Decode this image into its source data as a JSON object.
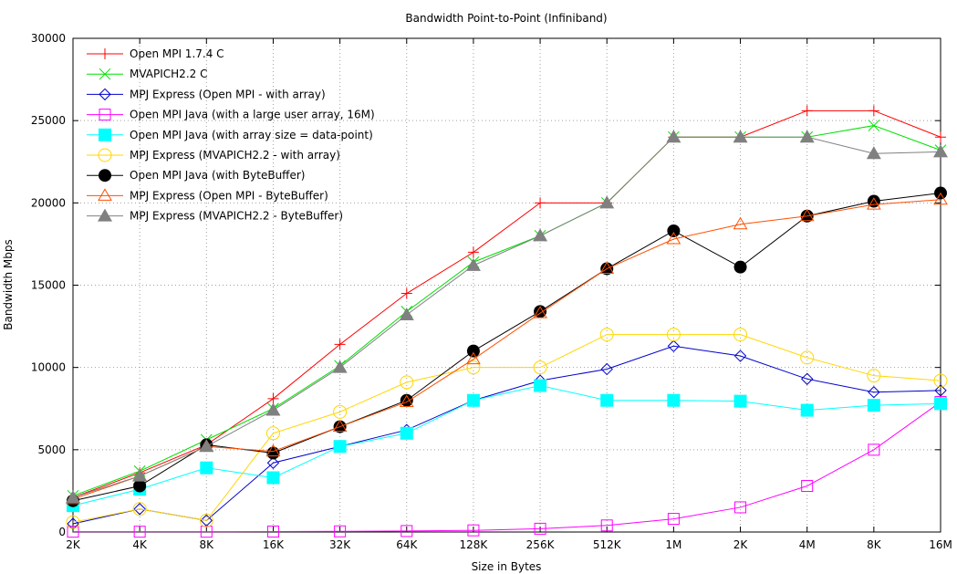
{
  "chart_data": {
    "type": "line",
    "title": "Bandwidth Point-to-Point (Infiniband)",
    "xlabel": "Size in Bytes",
    "ylabel": "Bandwidth Mbps",
    "categories": [
      "2K",
      "4K",
      "8K",
      "16K",
      "32K",
      "64K",
      "128K",
      "256K",
      "512K",
      "1M",
      "2K",
      "4M",
      "8K",
      "16M"
    ],
    "ylim": [
      0,
      30000
    ],
    "yticks": [
      0,
      5000,
      10000,
      15000,
      20000,
      25000,
      30000
    ],
    "grid": true,
    "legend_position": "top-left",
    "series": [
      {
        "name": "Open MPI 1.7.4 C",
        "color": "#ff0000",
        "marker": "plus",
        "values": [
          2100,
          3600,
          5300,
          8100,
          11400,
          14500,
          17000,
          20000,
          20000,
          24000,
          24000,
          25600,
          25600,
          24000
        ]
      },
      {
        "name": "MVAPICH2.2 C",
        "color": "#00e000",
        "marker": "cross",
        "values": [
          2200,
          3700,
          5600,
          7500,
          10100,
          13400,
          16400,
          18000,
          20000,
          24000,
          24000,
          24000,
          24700,
          23200
        ]
      },
      {
        "name": "MPJ Express (Open MPI - with array)",
        "color": "#0000cc",
        "marker": "diamond",
        "values": [
          500,
          1400,
          700,
          4200,
          5200,
          6200,
          8000,
          9200,
          9900,
          11300,
          10700,
          9300,
          8500,
          8600
        ]
      },
      {
        "name": "Open MPI Java (with a large user array, 16M)",
        "color": "#ff00ff",
        "marker": "square-open",
        "values": [
          20,
          20,
          20,
          30,
          40,
          60,
          100,
          200,
          400,
          800,
          1500,
          2800,
          5000,
          7900
        ]
      },
      {
        "name": "Open MPI Java (with array size = data-point)",
        "color": "#00ffff",
        "marker": "square-filled",
        "values": [
          1600,
          2600,
          3900,
          3300,
          5200,
          6000,
          8000,
          8900,
          8000,
          8000,
          7950,
          7400,
          7700,
          7800
        ]
      },
      {
        "name": "MPJ Express (MVAPICH2.2 - with array)",
        "color": "#ffd700",
        "marker": "circle-open",
        "values": [
          600,
          1400,
          700,
          6000,
          7300,
          9100,
          10000,
          10000,
          12000,
          12000,
          12000,
          10600,
          9500,
          9200
        ]
      },
      {
        "name": "Open MPI Java (with ByteBuffer)",
        "color": "#000000",
        "marker": "circle-filled",
        "values": [
          1900,
          2800,
          5300,
          4800,
          6400,
          8000,
          11000,
          13400,
          16000,
          18300,
          16100,
          19200,
          20100,
          20600
        ]
      },
      {
        "name": "MPJ Express (Open MPI - ByteBuffer)",
        "color": "#ff5000",
        "marker": "triangle-open",
        "values": [
          2000,
          3400,
          5200,
          4900,
          6400,
          7900,
          10500,
          13300,
          16000,
          17800,
          18700,
          19200,
          19900,
          20200
        ]
      },
      {
        "name": "MPJ Express (MVAPICH2.2 - ByteBuffer)",
        "color": "#808080",
        "marker": "triangle-filled",
        "values": [
          2100,
          3400,
          5200,
          7400,
          10000,
          13200,
          16200,
          18000,
          20000,
          24000,
          24000,
          24000,
          23000,
          23100
        ]
      }
    ]
  }
}
